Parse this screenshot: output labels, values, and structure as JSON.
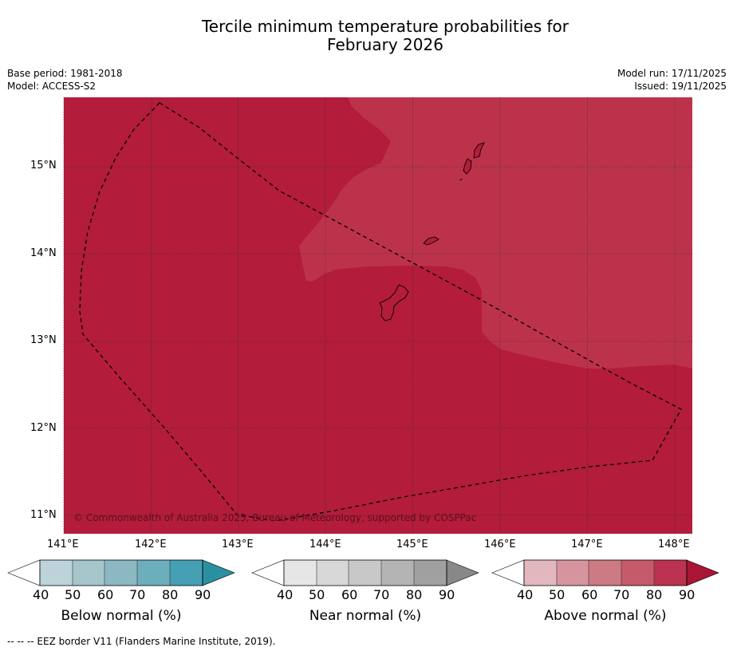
{
  "title_line1": "Tercile minimum temperature probabilities for",
  "title_line2": "February 2026",
  "meta_left": [
    "Base period: 1981-2018",
    "Model: ACCESS-S2"
  ],
  "meta_right": [
    "Model run: 17/11/2025",
    "Issued: 19/11/2025"
  ],
  "colors": {
    "ocean_dark": "#b31c3a",
    "ocean_light": "#bd324b",
    "grid": "#333333",
    "eez_line": "#000000"
  },
  "x_ticks": [
    "141°E",
    "142°E",
    "143°E",
    "144°E",
    "145°E",
    "146°E",
    "147°E",
    "148°E"
  ],
  "y_ticks": [
    "15°N",
    "14°N",
    "13°N",
    "12°N",
    "11°N"
  ],
  "copyright": "© Commonwealth of Australia 2025, Bureau of Meteorology, supported by COSPPac",
  "colorbars": [
    {
      "label": "Below normal (%)",
      "ticks": [
        "40",
        "50",
        "60",
        "70",
        "80",
        "90"
      ],
      "colors": [
        "#ffffff",
        "#bcd3da",
        "#a7c6cc",
        "#8bb8c3",
        "#6daebd",
        "#45a0b3",
        "#2b8fa2"
      ]
    },
    {
      "label": "Near normal (%)",
      "ticks": [
        "40",
        "50",
        "60",
        "70",
        "80",
        "90"
      ],
      "colors": [
        "#ffffff",
        "#e6e6e6",
        "#d8d8d8",
        "#c8c8c8",
        "#b4b4b4",
        "#a0a0a0",
        "#888888"
      ]
    },
    {
      "label": "Above normal (%)",
      "ticks": [
        "40",
        "50",
        "60",
        "70",
        "80",
        "90"
      ],
      "colors": [
        "#ffffff",
        "#e2b7be",
        "#d6949e",
        "#cc7a84",
        "#c55a6a",
        "#bb3350",
        "#a81535"
      ]
    }
  ],
  "footer": "--  --  -- EEZ border V11 (Flanders Marine Institute, 2019)."
}
